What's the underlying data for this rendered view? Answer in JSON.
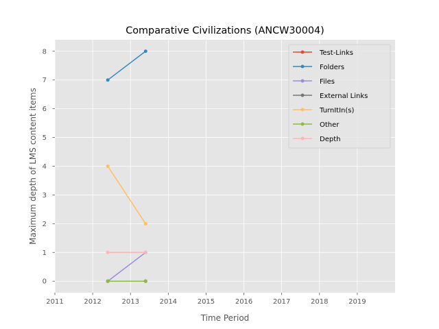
{
  "chart_data": {
    "type": "line",
    "title": "Comparative Civilizations (ANCW30004)",
    "xlabel": "Time Period",
    "ylabel": "Maximum depth of LMS content items",
    "xlim": [
      2011,
      2020
    ],
    "ylim": [
      -0.4,
      8.4
    ],
    "xticks": [
      2011,
      2012,
      2013,
      2014,
      2015,
      2016,
      2017,
      2018,
      2019
    ],
    "yticks": [
      0,
      1,
      2,
      3,
      4,
      5,
      6,
      7,
      8
    ],
    "grid": true,
    "legend_position": "top-right",
    "series": [
      {
        "name": "Test-Links",
        "color": "#E24A33",
        "points": [
          [
            2012.4,
            0
          ],
          [
            2013.4,
            0
          ]
        ]
      },
      {
        "name": "Folders",
        "color": "#348ABD",
        "points": [
          [
            2012.4,
            7
          ],
          [
            2013.4,
            8
          ]
        ]
      },
      {
        "name": "Files",
        "color": "#988ED5",
        "points": [
          [
            2012.4,
            0
          ],
          [
            2013.4,
            1
          ]
        ]
      },
      {
        "name": "External Links",
        "color": "#777777",
        "points": [
          [
            2012.4,
            0
          ],
          [
            2013.4,
            0
          ]
        ]
      },
      {
        "name": "TurnItIn(s)",
        "color": "#FBC15E",
        "points": [
          [
            2012.4,
            4
          ],
          [
            2013.4,
            2
          ]
        ]
      },
      {
        "name": "Other",
        "color": "#8EBA42",
        "points": [
          [
            2012.4,
            0
          ],
          [
            2013.4,
            0
          ]
        ]
      },
      {
        "name": "Depth",
        "color": "#FFB5B8",
        "points": [
          [
            2012.4,
            1
          ],
          [
            2013.4,
            1
          ]
        ]
      }
    ]
  }
}
